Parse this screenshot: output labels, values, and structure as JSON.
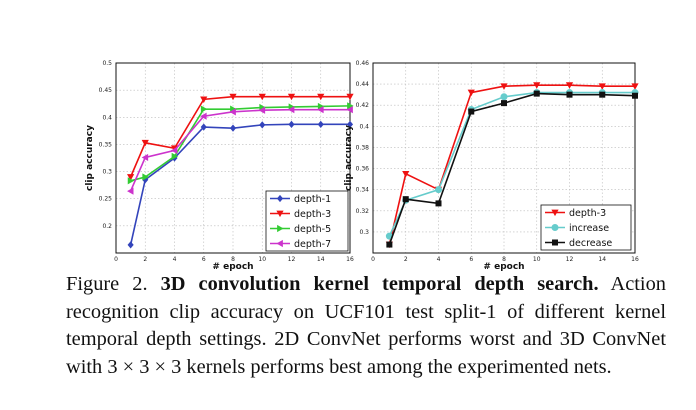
{
  "chart_data": [
    {
      "type": "line",
      "title": "",
      "xlabel": "# epoch",
      "ylabel": "clip accuracy",
      "xlim": [
        0,
        16
      ],
      "ylim": [
        0.15,
        0.5
      ],
      "xticks": [
        0,
        2,
        4,
        6,
        8,
        10,
        12,
        14,
        16
      ],
      "xtick_labels": [
        "0",
        "2",
        "4",
        "6",
        "8",
        "10",
        "12",
        "14",
        "16"
      ],
      "yticks": [
        0.2,
        0.25,
        0.3,
        0.35,
        0.4,
        0.45,
        0.5
      ],
      "ytick_labels": [
        "0.2",
        "0.25",
        "0.3",
        "0.35",
        "0.4",
        "0.45",
        "0.5"
      ],
      "grid": true,
      "legend_position": "bottom-right",
      "x": [
        1,
        2,
        4,
        6,
        8,
        10,
        12,
        14,
        16
      ],
      "series": [
        {
          "name": "depth-1",
          "color": "#3344bb",
          "marker": "diamond",
          "values": [
            0.165,
            0.285,
            0.325,
            0.382,
            0.38,
            0.386,
            0.387,
            0.387,
            0.387
          ]
        },
        {
          "name": "depth-3",
          "color": "#ee1111",
          "marker": "triangle-down",
          "values": [
            0.29,
            0.353,
            0.343,
            0.433,
            0.438,
            0.438,
            0.438,
            0.438,
            0.438
          ]
        },
        {
          "name": "depth-5",
          "color": "#33cc33",
          "marker": "triangle-right",
          "values": [
            0.283,
            0.29,
            0.328,
            0.415,
            0.415,
            0.418,
            0.419,
            0.42,
            0.421
          ]
        },
        {
          "name": "depth-7",
          "color": "#cc33cc",
          "marker": "triangle-left",
          "values": [
            0.264,
            0.326,
            0.339,
            0.402,
            0.41,
            0.413,
            0.414,
            0.414,
            0.414
          ]
        }
      ]
    },
    {
      "type": "line",
      "title": "",
      "xlabel": "# epoch",
      "ylabel": "clip accuracy",
      "xlim": [
        0,
        16
      ],
      "ylim": [
        0.28,
        0.46
      ],
      "xticks": [
        0,
        2,
        4,
        6,
        8,
        10,
        12,
        14,
        16
      ],
      "xtick_labels": [
        "0",
        "2",
        "4",
        "6",
        "8",
        "10",
        "12",
        "14",
        "16"
      ],
      "yticks": [
        0.3,
        0.32,
        0.34,
        0.36,
        0.38,
        0.4,
        0.42,
        0.44,
        0.46
      ],
      "ytick_labels": [
        "0.3",
        "0.32",
        "0.34",
        "0.36",
        "0.38",
        "0.4",
        "0.42",
        "0.44",
        "0.46"
      ],
      "grid": true,
      "legend_position": "bottom-right",
      "x": [
        1,
        2,
        4,
        6,
        8,
        10,
        12,
        14,
        16
      ],
      "series": [
        {
          "name": "depth-3",
          "color": "#ee1111",
          "marker": "triangle-down",
          "values": [
            0.288,
            0.355,
            0.34,
            0.432,
            0.438,
            0.439,
            0.439,
            0.438,
            0.438
          ]
        },
        {
          "name": "increase",
          "color": "#66cccc",
          "marker": "circle",
          "values": [
            0.296,
            0.33,
            0.34,
            0.416,
            0.428,
            0.432,
            0.432,
            0.432,
            0.432
          ]
        },
        {
          "name": "decrease",
          "color": "#111111",
          "marker": "square",
          "values": [
            0.288,
            0.331,
            0.327,
            0.414,
            0.422,
            0.431,
            0.43,
            0.43,
            0.429
          ]
        }
      ]
    }
  ],
  "caption": {
    "prefix": "Figure 2. ",
    "bold": "3D convolution kernel temporal depth search.",
    "text": " Action recognition clip accuracy on UCF101 test split-1 of different kernel temporal depth settings. 2D ConvNet performs worst and 3D ConvNet with 3 × 3 × 3 kernels performs best among the experimented nets."
  }
}
